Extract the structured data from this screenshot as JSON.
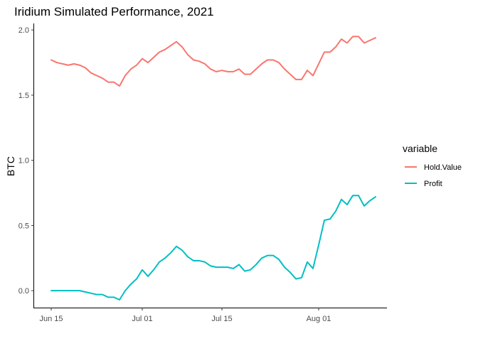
{
  "chart_data": {
    "type": "line",
    "title": "Iridium Simulated Performance, 2021",
    "xlabel": "",
    "ylabel": "BTC",
    "xlim": [
      "2021-06-12",
      "2021-08-13"
    ],
    "ylim": [
      -0.13,
      2.05
    ],
    "x_ticks": [
      {
        "date": "2021-06-15",
        "label": "Jun 15"
      },
      {
        "date": "2021-07-01",
        "label": "Jul 01"
      },
      {
        "date": "2021-07-15",
        "label": "Jul 15"
      },
      {
        "date": "2021-08-01",
        "label": "Aug 01"
      }
    ],
    "y_ticks": [
      {
        "value": 0.0,
        "label": "0.0"
      },
      {
        "value": 0.5,
        "label": "0.5"
      },
      {
        "value": 1.0,
        "label": "1.0"
      },
      {
        "value": 1.5,
        "label": "1.5"
      },
      {
        "value": 2.0,
        "label": "2.0"
      }
    ],
    "grid": false,
    "legend": {
      "title": "variable",
      "placement": "right"
    },
    "series": [
      {
        "name": "Hold.Value",
        "color": "#F8766D",
        "points": [
          [
            "2021-06-15",
            1.77
          ],
          [
            "2021-06-16",
            1.75
          ],
          [
            "2021-06-17",
            1.74
          ],
          [
            "2021-06-18",
            1.73
          ],
          [
            "2021-06-19",
            1.74
          ],
          [
            "2021-06-20",
            1.73
          ],
          [
            "2021-06-21",
            1.71
          ],
          [
            "2021-06-22",
            1.67
          ],
          [
            "2021-06-23",
            1.65
          ],
          [
            "2021-06-24",
            1.63
          ],
          [
            "2021-06-25",
            1.6
          ],
          [
            "2021-06-26",
            1.6
          ],
          [
            "2021-06-27",
            1.57
          ],
          [
            "2021-06-28",
            1.65
          ],
          [
            "2021-06-29",
            1.7
          ],
          [
            "2021-06-30",
            1.73
          ],
          [
            "2021-07-01",
            1.78
          ],
          [
            "2021-07-02",
            1.75
          ],
          [
            "2021-07-03",
            1.79
          ],
          [
            "2021-07-04",
            1.83
          ],
          [
            "2021-07-05",
            1.85
          ],
          [
            "2021-07-06",
            1.88
          ],
          [
            "2021-07-07",
            1.91
          ],
          [
            "2021-07-08",
            1.87
          ],
          [
            "2021-07-09",
            1.81
          ],
          [
            "2021-07-10",
            1.77
          ],
          [
            "2021-07-11",
            1.76
          ],
          [
            "2021-07-12",
            1.74
          ],
          [
            "2021-07-13",
            1.7
          ],
          [
            "2021-07-14",
            1.68
          ],
          [
            "2021-07-15",
            1.69
          ],
          [
            "2021-07-16",
            1.68
          ],
          [
            "2021-07-17",
            1.68
          ],
          [
            "2021-07-18",
            1.7
          ],
          [
            "2021-07-19",
            1.66
          ],
          [
            "2021-07-20",
            1.66
          ],
          [
            "2021-07-21",
            1.7
          ],
          [
            "2021-07-22",
            1.74
          ],
          [
            "2021-07-23",
            1.77
          ],
          [
            "2021-07-24",
            1.77
          ],
          [
            "2021-07-25",
            1.75
          ],
          [
            "2021-07-26",
            1.7
          ],
          [
            "2021-07-27",
            1.66
          ],
          [
            "2021-07-28",
            1.62
          ],
          [
            "2021-07-29",
            1.62
          ],
          [
            "2021-07-30",
            1.69
          ],
          [
            "2021-07-31",
            1.65
          ],
          [
            "2021-08-01",
            1.74
          ],
          [
            "2021-08-02",
            1.83
          ],
          [
            "2021-08-03",
            1.83
          ],
          [
            "2021-08-04",
            1.87
          ],
          [
            "2021-08-05",
            1.93
          ],
          [
            "2021-08-06",
            1.9
          ],
          [
            "2021-08-07",
            1.95
          ],
          [
            "2021-08-08",
            1.95
          ],
          [
            "2021-08-09",
            1.9
          ],
          [
            "2021-08-10",
            1.92
          ],
          [
            "2021-08-11",
            1.94
          ]
        ]
      },
      {
        "name": "Profit",
        "color": "#00BFC4",
        "points": [
          [
            "2021-06-15",
            0.0
          ],
          [
            "2021-06-16",
            0.0
          ],
          [
            "2021-06-17",
            0.0
          ],
          [
            "2021-06-18",
            0.0
          ],
          [
            "2021-06-19",
            0.0
          ],
          [
            "2021-06-20",
            0.0
          ],
          [
            "2021-06-21",
            -0.01
          ],
          [
            "2021-06-22",
            -0.02
          ],
          [
            "2021-06-23",
            -0.03
          ],
          [
            "2021-06-24",
            -0.03
          ],
          [
            "2021-06-25",
            -0.05
          ],
          [
            "2021-06-26",
            -0.05
          ],
          [
            "2021-06-27",
            -0.07
          ],
          [
            "2021-06-28",
            0.0
          ],
          [
            "2021-06-29",
            0.05
          ],
          [
            "2021-06-30",
            0.09
          ],
          [
            "2021-07-01",
            0.16
          ],
          [
            "2021-07-02",
            0.11
          ],
          [
            "2021-07-03",
            0.16
          ],
          [
            "2021-07-04",
            0.22
          ],
          [
            "2021-07-05",
            0.25
          ],
          [
            "2021-07-06",
            0.29
          ],
          [
            "2021-07-07",
            0.34
          ],
          [
            "2021-07-08",
            0.31
          ],
          [
            "2021-07-09",
            0.26
          ],
          [
            "2021-07-10",
            0.23
          ],
          [
            "2021-07-11",
            0.23
          ],
          [
            "2021-07-12",
            0.22
          ],
          [
            "2021-07-13",
            0.19
          ],
          [
            "2021-07-14",
            0.18
          ],
          [
            "2021-07-15",
            0.18
          ],
          [
            "2021-07-16",
            0.18
          ],
          [
            "2021-07-17",
            0.17
          ],
          [
            "2021-07-18",
            0.2
          ],
          [
            "2021-07-19",
            0.15
          ],
          [
            "2021-07-20",
            0.16
          ],
          [
            "2021-07-21",
            0.2
          ],
          [
            "2021-07-22",
            0.25
          ],
          [
            "2021-07-23",
            0.27
          ],
          [
            "2021-07-24",
            0.27
          ],
          [
            "2021-07-25",
            0.24
          ],
          [
            "2021-07-26",
            0.18
          ],
          [
            "2021-07-27",
            0.14
          ],
          [
            "2021-07-28",
            0.09
          ],
          [
            "2021-07-29",
            0.1
          ],
          [
            "2021-07-30",
            0.22
          ],
          [
            "2021-07-31",
            0.17
          ],
          [
            "2021-08-01",
            0.35
          ],
          [
            "2021-08-02",
            0.54
          ],
          [
            "2021-08-03",
            0.55
          ],
          [
            "2021-08-04",
            0.61
          ],
          [
            "2021-08-05",
            0.7
          ],
          [
            "2021-08-06",
            0.66
          ],
          [
            "2021-08-07",
            0.73
          ],
          [
            "2021-08-08",
            0.73
          ],
          [
            "2021-08-09",
            0.65
          ],
          [
            "2021-08-10",
            0.69
          ],
          [
            "2021-08-11",
            0.72
          ]
        ]
      }
    ]
  }
}
